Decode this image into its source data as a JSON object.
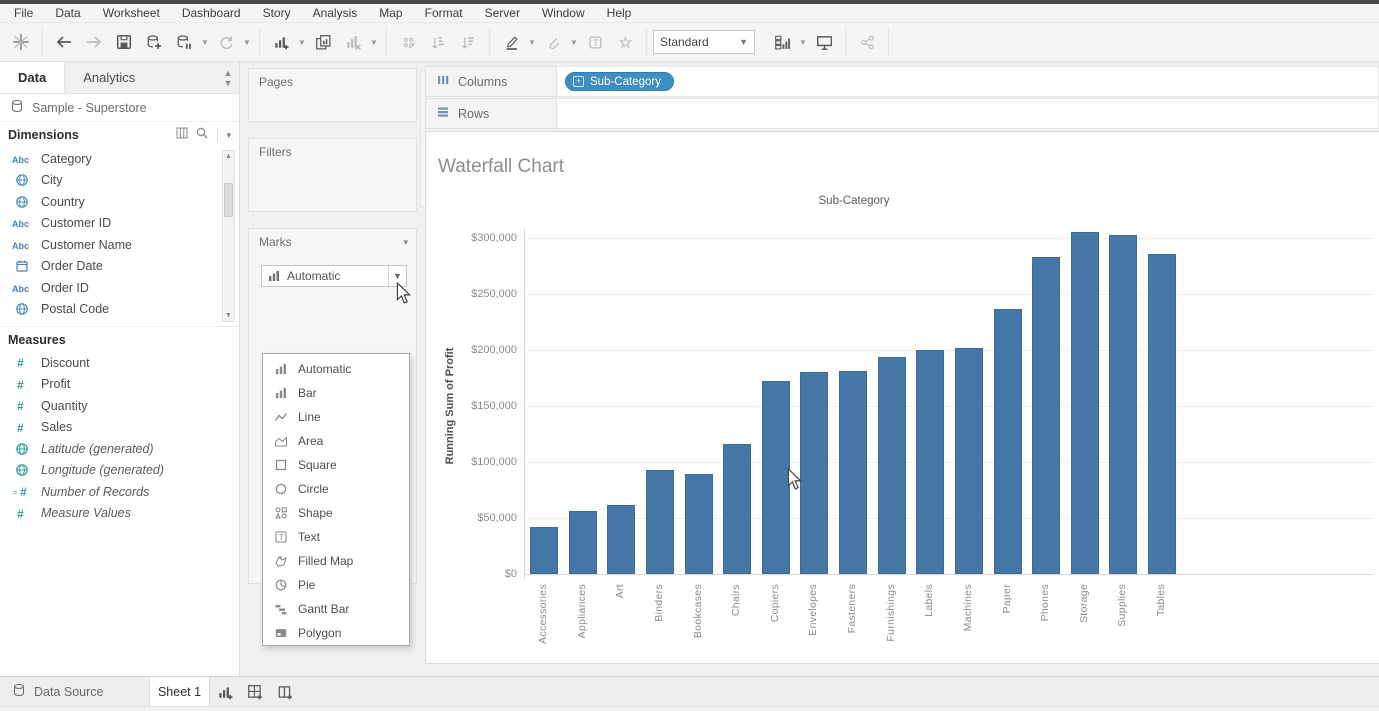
{
  "menu_bar": {
    "items": [
      "File",
      "Data",
      "Worksheet",
      "Dashboard",
      "Story",
      "Analysis",
      "Map",
      "Format",
      "Server",
      "Window",
      "Help"
    ]
  },
  "toolbar": {
    "view_mode": "Standard",
    "icons": [
      {
        "name": "tableau-logo-icon",
        "group": 1,
        "enabled": true,
        "caret": false
      },
      {
        "name": "undo-back-icon",
        "group": 2,
        "enabled": true,
        "caret": false
      },
      {
        "name": "redo-forward-icon",
        "group": 2,
        "enabled": false,
        "caret": false
      },
      {
        "name": "save-icon",
        "group": 2,
        "enabled": true,
        "caret": false
      },
      {
        "name": "add-datasource-icon",
        "group": 2,
        "enabled": true,
        "caret": false
      },
      {
        "name": "pause-updates-icon",
        "group": 2,
        "enabled": true,
        "caret": true
      },
      {
        "name": "refresh-icon",
        "group": 2,
        "enabled": false,
        "caret": true
      },
      {
        "name": "new-worksheet-icon",
        "group": 3,
        "enabled": true,
        "caret": true
      },
      {
        "name": "duplicate-sheet-icon",
        "group": 3,
        "enabled": true,
        "caret": false
      },
      {
        "name": "clear-sheet-icon",
        "group": 3,
        "enabled": false,
        "caret": true
      },
      {
        "name": "group-members-icon",
        "group": 4,
        "enabled": false,
        "caret": false
      },
      {
        "name": "sort-ascending-icon",
        "group": 4,
        "enabled": false,
        "caret": false
      },
      {
        "name": "sort-descending-icon",
        "group": 4,
        "enabled": false,
        "caret": false
      },
      {
        "name": "highlight-icon",
        "group": 5,
        "enabled": true,
        "caret": true
      },
      {
        "name": "annotation-icon",
        "group": 5,
        "enabled": false,
        "caret": true
      },
      {
        "name": "show-labels-icon",
        "group": 5,
        "enabled": false,
        "caret": false
      },
      {
        "name": "fix-axes-icon",
        "group": 5,
        "enabled": false,
        "caret": false
      },
      {
        "name": "show-me-icon",
        "group": 7,
        "enabled": true,
        "caret": true
      },
      {
        "name": "presentation-mode-icon",
        "group": 7,
        "enabled": true,
        "caret": false
      },
      {
        "name": "share-icon",
        "group": 8,
        "enabled": false,
        "caret": false
      }
    ]
  },
  "data_pane": {
    "tabs": [
      {
        "label": "Data",
        "active": true
      },
      {
        "label": "Analytics",
        "active": false
      }
    ],
    "datasource": "Sample - Superstore",
    "dimensions": {
      "header": "Dimensions",
      "items": [
        {
          "icon": "abc",
          "label": "Category"
        },
        {
          "icon": "globe-blue",
          "label": "City"
        },
        {
          "icon": "globe-blue",
          "label": "Country"
        },
        {
          "icon": "abc",
          "label": "Customer ID"
        },
        {
          "icon": "abc",
          "label": "Customer Name"
        },
        {
          "icon": "calendar",
          "label": "Order Date"
        },
        {
          "icon": "abc",
          "label": "Order ID"
        },
        {
          "icon": "globe-blue",
          "label": "Postal Code"
        }
      ]
    },
    "measures": {
      "header": "Measures",
      "items": [
        {
          "icon": "hash",
          "label": "Discount",
          "italic": false
        },
        {
          "icon": "hash",
          "label": "Profit",
          "italic": false
        },
        {
          "icon": "hash",
          "label": "Quantity",
          "italic": false
        },
        {
          "icon": "hash",
          "label": "Sales",
          "italic": false
        },
        {
          "icon": "globe-green",
          "label": "Latitude (generated)",
          "italic": true
        },
        {
          "icon": "globe-green",
          "label": "Longitude (generated)",
          "italic": true
        },
        {
          "icon": "hash-eq",
          "label": "Number of Records",
          "italic": true
        },
        {
          "icon": "hash",
          "label": "Measure Values",
          "italic": true
        }
      ]
    }
  },
  "cards": {
    "pages_label": "Pages",
    "filters_label": "Filters",
    "marks": {
      "title": "Marks",
      "selected": "Automatic",
      "menu": [
        {
          "icon": "bars",
          "label": "Automatic"
        },
        {
          "icon": "bars",
          "label": "Bar"
        },
        {
          "icon": "line",
          "label": "Line"
        },
        {
          "icon": "area",
          "label": "Area"
        },
        {
          "icon": "square",
          "label": "Square"
        },
        {
          "icon": "circle",
          "label": "Circle"
        },
        {
          "icon": "shape",
          "label": "Shape"
        },
        {
          "icon": "text",
          "label": "Text"
        },
        {
          "icon": "filled-map",
          "label": "Filled Map"
        },
        {
          "icon": "pie",
          "label": "Pie"
        },
        {
          "icon": "gantt",
          "label": "Gantt Bar"
        },
        {
          "icon": "polygon",
          "label": "Polygon"
        }
      ]
    }
  },
  "shelves": {
    "columns": {
      "label": "Columns",
      "pills": [
        "Sub-Category"
      ]
    },
    "rows": {
      "label": "Rows",
      "pills": []
    }
  },
  "chart_data": {
    "type": "bar",
    "title": "Waterfall Chart",
    "column_header": "Sub-Category",
    "ylabel": "Running Sum of Profit",
    "xlabel": "",
    "categories": [
      "Accessories",
      "Appliances",
      "Art",
      "Binders",
      "Bookcases",
      "Chairs",
      "Copiers",
      "Envelopes",
      "Fasteners",
      "Furnishings",
      "Labels",
      "Machines",
      "Paper",
      "Phones",
      "Storage",
      "Supplies",
      "Tables"
    ],
    "values": [
      42000,
      56000,
      62000,
      93000,
      89000,
      116000,
      172000,
      180000,
      181000,
      194000,
      200000,
      202000,
      237000,
      283000,
      305000,
      303000,
      286000
    ],
    "y_ticks": [
      "$0",
      "$50,000",
      "$100,000",
      "$150,000",
      "$200,000",
      "$250,000",
      "$300,000"
    ],
    "y_tick_values": [
      0,
      50000,
      100000,
      150000,
      200000,
      250000,
      300000
    ],
    "ylim": [
      0,
      320000
    ],
    "grid": true,
    "legend": "none",
    "bar_color": "#4577a7"
  },
  "sheet_tabs": {
    "data_source_label": "Data Source",
    "sheets": [
      "Sheet 1"
    ]
  },
  "colors": {
    "accent_blue": "#3e8ec4",
    "bar_blue": "#4577a7",
    "chrome": "#f6f5f6",
    "panel_border": "#dddcdd",
    "text_gray": "#6b6b6b",
    "dimension_icon": "#4a7ebb",
    "measure_icon": "#2f9e8f"
  }
}
